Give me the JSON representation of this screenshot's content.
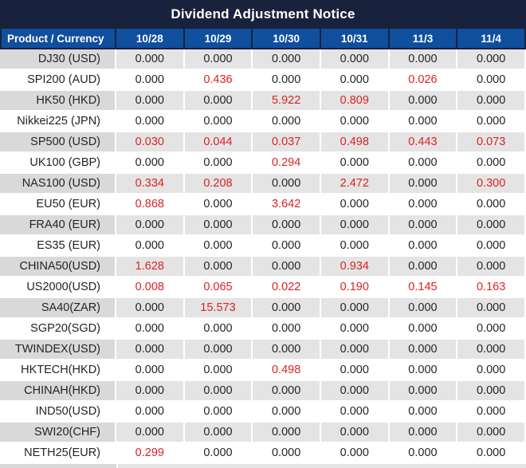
{
  "title": "Dividend Adjustment Notice",
  "colors": {
    "title_bg": "#18223c",
    "header_bg": "#104f9e",
    "row_gray": "#e4e4e4",
    "row_gray_product": "#d9d9d9",
    "red_value": "#dd2222",
    "text": "#242424"
  },
  "columns": [
    "Product / Currency",
    "10/28",
    "10/29",
    "10/30",
    "10/31",
    "11/3",
    "11/4"
  ],
  "rows": [
    {
      "product": "DJ30 (USD)",
      "values": [
        {
          "text": "0.000",
          "red": false
        },
        {
          "text": "0.000",
          "red": false
        },
        {
          "text": "0.000",
          "red": false
        },
        {
          "text": "0.000",
          "red": false
        },
        {
          "text": "0.000",
          "red": false
        },
        {
          "text": "0.000",
          "red": false
        }
      ]
    },
    {
      "product": "SPI200 (AUD)",
      "values": [
        {
          "text": "0.000",
          "red": false
        },
        {
          "text": "0.436",
          "red": true
        },
        {
          "text": "0.000",
          "red": false
        },
        {
          "text": "0.000",
          "red": false
        },
        {
          "text": "0.026",
          "red": true
        },
        {
          "text": "0.000",
          "red": false
        }
      ]
    },
    {
      "product": "HK50 (HKD)",
      "values": [
        {
          "text": "0.000",
          "red": false
        },
        {
          "text": "0.000",
          "red": false
        },
        {
          "text": "5.922",
          "red": true
        },
        {
          "text": "0.809",
          "red": true
        },
        {
          "text": "0.000",
          "red": false
        },
        {
          "text": "0.000",
          "red": false
        }
      ]
    },
    {
      "product": "Nikkei225 (JPN)",
      "values": [
        {
          "text": "0.000",
          "red": false
        },
        {
          "text": "0.000",
          "red": false
        },
        {
          "text": "0.000",
          "red": false
        },
        {
          "text": "0.000",
          "red": false
        },
        {
          "text": "0.000",
          "red": false
        },
        {
          "text": "0.000",
          "red": false
        }
      ]
    },
    {
      "product": "SP500 (USD)",
      "values": [
        {
          "text": "0.030",
          "red": true
        },
        {
          "text": "0.044",
          "red": true
        },
        {
          "text": "0.037",
          "red": true
        },
        {
          "text": "0.498",
          "red": true
        },
        {
          "text": "0.443",
          "red": true
        },
        {
          "text": "0.073",
          "red": true
        }
      ]
    },
    {
      "product": "UK100 (GBP)",
      "values": [
        {
          "text": "0.000",
          "red": false
        },
        {
          "text": "0.000",
          "red": false
        },
        {
          "text": "0.294",
          "red": true
        },
        {
          "text": "0.000",
          "red": false
        },
        {
          "text": "0.000",
          "red": false
        },
        {
          "text": "0.000",
          "red": false
        }
      ]
    },
    {
      "product": "NAS100 (USD)",
      "values": [
        {
          "text": "0.334",
          "red": true
        },
        {
          "text": "0.208",
          "red": true
        },
        {
          "text": "0.000",
          "red": false
        },
        {
          "text": "2.472",
          "red": true
        },
        {
          "text": "0.000",
          "red": false
        },
        {
          "text": "0.300",
          "red": true
        }
      ]
    },
    {
      "product": "EU50 (EUR)",
      "values": [
        {
          "text": "0.868",
          "red": true
        },
        {
          "text": "0.000",
          "red": false
        },
        {
          "text": "3.642",
          "red": true
        },
        {
          "text": "0.000",
          "red": false
        },
        {
          "text": "0.000",
          "red": false
        },
        {
          "text": "0.000",
          "red": false
        }
      ]
    },
    {
      "product": "FRA40 (EUR)",
      "values": [
        {
          "text": "0.000",
          "red": false
        },
        {
          "text": "0.000",
          "red": false
        },
        {
          "text": "0.000",
          "red": false
        },
        {
          "text": "0.000",
          "red": false
        },
        {
          "text": "0.000",
          "red": false
        },
        {
          "text": "0.000",
          "red": false
        }
      ]
    },
    {
      "product": "ES35 (EUR)",
      "values": [
        {
          "text": "0.000",
          "red": false
        },
        {
          "text": "0.000",
          "red": false
        },
        {
          "text": "0.000",
          "red": false
        },
        {
          "text": "0.000",
          "red": false
        },
        {
          "text": "0.000",
          "red": false
        },
        {
          "text": "0.000",
          "red": false
        }
      ]
    },
    {
      "product": "CHINA50(USD)",
      "values": [
        {
          "text": "1.628",
          "red": true
        },
        {
          "text": "0.000",
          "red": false
        },
        {
          "text": "0.000",
          "red": false
        },
        {
          "text": "0.934",
          "red": true
        },
        {
          "text": "0.000",
          "red": false
        },
        {
          "text": "0.000",
          "red": false
        }
      ]
    },
    {
      "product": "US2000(USD)",
      "values": [
        {
          "text": "0.008",
          "red": true
        },
        {
          "text": "0.065",
          "red": true
        },
        {
          "text": "0.022",
          "red": true
        },
        {
          "text": "0.190",
          "red": true
        },
        {
          "text": "0.145",
          "red": true
        },
        {
          "text": "0.163",
          "red": true
        }
      ]
    },
    {
      "product": "SA40(ZAR)",
      "values": [
        {
          "text": "0.000",
          "red": false
        },
        {
          "text": "15.573",
          "red": true
        },
        {
          "text": "0.000",
          "red": false
        },
        {
          "text": "0.000",
          "red": false
        },
        {
          "text": "0.000",
          "red": false
        },
        {
          "text": "0.000",
          "red": false
        }
      ]
    },
    {
      "product": "SGP20(SGD)",
      "values": [
        {
          "text": "0.000",
          "red": false
        },
        {
          "text": "0.000",
          "red": false
        },
        {
          "text": "0.000",
          "red": false
        },
        {
          "text": "0.000",
          "red": false
        },
        {
          "text": "0.000",
          "red": false
        },
        {
          "text": "0.000",
          "red": false
        }
      ]
    },
    {
      "product": "TWINDEX(USD)",
      "values": [
        {
          "text": "0.000",
          "red": false
        },
        {
          "text": "0.000",
          "red": false
        },
        {
          "text": "0.000",
          "red": false
        },
        {
          "text": "0.000",
          "red": false
        },
        {
          "text": "0.000",
          "red": false
        },
        {
          "text": "0.000",
          "red": false
        }
      ]
    },
    {
      "product": "HKTECH(HKD)",
      "values": [
        {
          "text": "0.000",
          "red": false
        },
        {
          "text": "0.000",
          "red": false
        },
        {
          "text": "0.498",
          "red": true
        },
        {
          "text": "0.000",
          "red": false
        },
        {
          "text": "0.000",
          "red": false
        },
        {
          "text": "0.000",
          "red": false
        }
      ]
    },
    {
      "product": "CHINAH(HKD)",
      "values": [
        {
          "text": "0.000",
          "red": false
        },
        {
          "text": "0.000",
          "red": false
        },
        {
          "text": "0.000",
          "red": false
        },
        {
          "text": "0.000",
          "red": false
        },
        {
          "text": "0.000",
          "red": false
        },
        {
          "text": "0.000",
          "red": false
        }
      ]
    },
    {
      "product": "IND50(USD)",
      "values": [
        {
          "text": "0.000",
          "red": false
        },
        {
          "text": "0.000",
          "red": false
        },
        {
          "text": "0.000",
          "red": false
        },
        {
          "text": "0.000",
          "red": false
        },
        {
          "text": "0.000",
          "red": false
        },
        {
          "text": "0.000",
          "red": false
        }
      ]
    },
    {
      "product": "SWI20(CHF)",
      "values": [
        {
          "text": "0.000",
          "red": false
        },
        {
          "text": "0.000",
          "red": false
        },
        {
          "text": "0.000",
          "red": false
        },
        {
          "text": "0.000",
          "red": false
        },
        {
          "text": "0.000",
          "red": false
        },
        {
          "text": "0.000",
          "red": false
        }
      ]
    },
    {
      "product": "NETH25(EUR)",
      "values": [
        {
          "text": "0.299",
          "red": true
        },
        {
          "text": "0.000",
          "red": false
        },
        {
          "text": "0.000",
          "red": false
        },
        {
          "text": "0.000",
          "red": false
        },
        {
          "text": "0.000",
          "red": false
        },
        {
          "text": "0.000",
          "red": false
        }
      ]
    }
  ]
}
